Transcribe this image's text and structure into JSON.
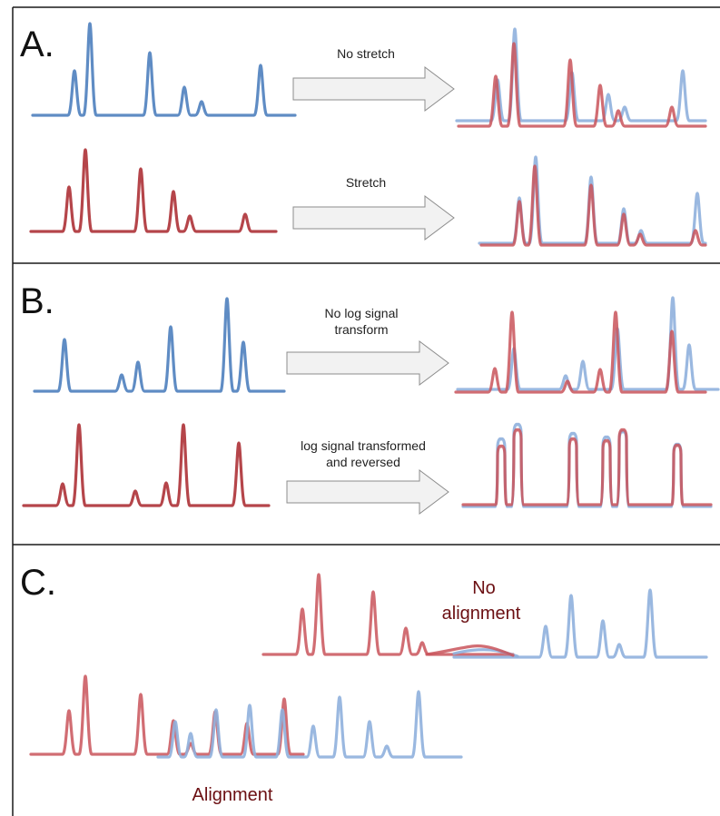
{
  "colors": {
    "blue": "#5f8cc4",
    "red": "#b5454a",
    "blue_overlay": "#8fb0dd",
    "red_overlay": "#c9545a",
    "label_dark_red": "#6b0f12"
  },
  "panels": {
    "a": {
      "letter": "A.",
      "arrow_top_label": "No stretch",
      "arrow_bottom_label": "Stretch"
    },
    "b": {
      "letter": "B.",
      "arrow_top_label_line1": "No log signal",
      "arrow_top_label_line2": "transform",
      "arrow_bottom_label_line1": "log signal transformed",
      "arrow_bottom_label_line2": "and reversed"
    },
    "c": {
      "letter": "C.",
      "no_alignment_line1": "No",
      "no_alignment_line2": "alignment",
      "alignment_label": "Alignment"
    }
  }
}
